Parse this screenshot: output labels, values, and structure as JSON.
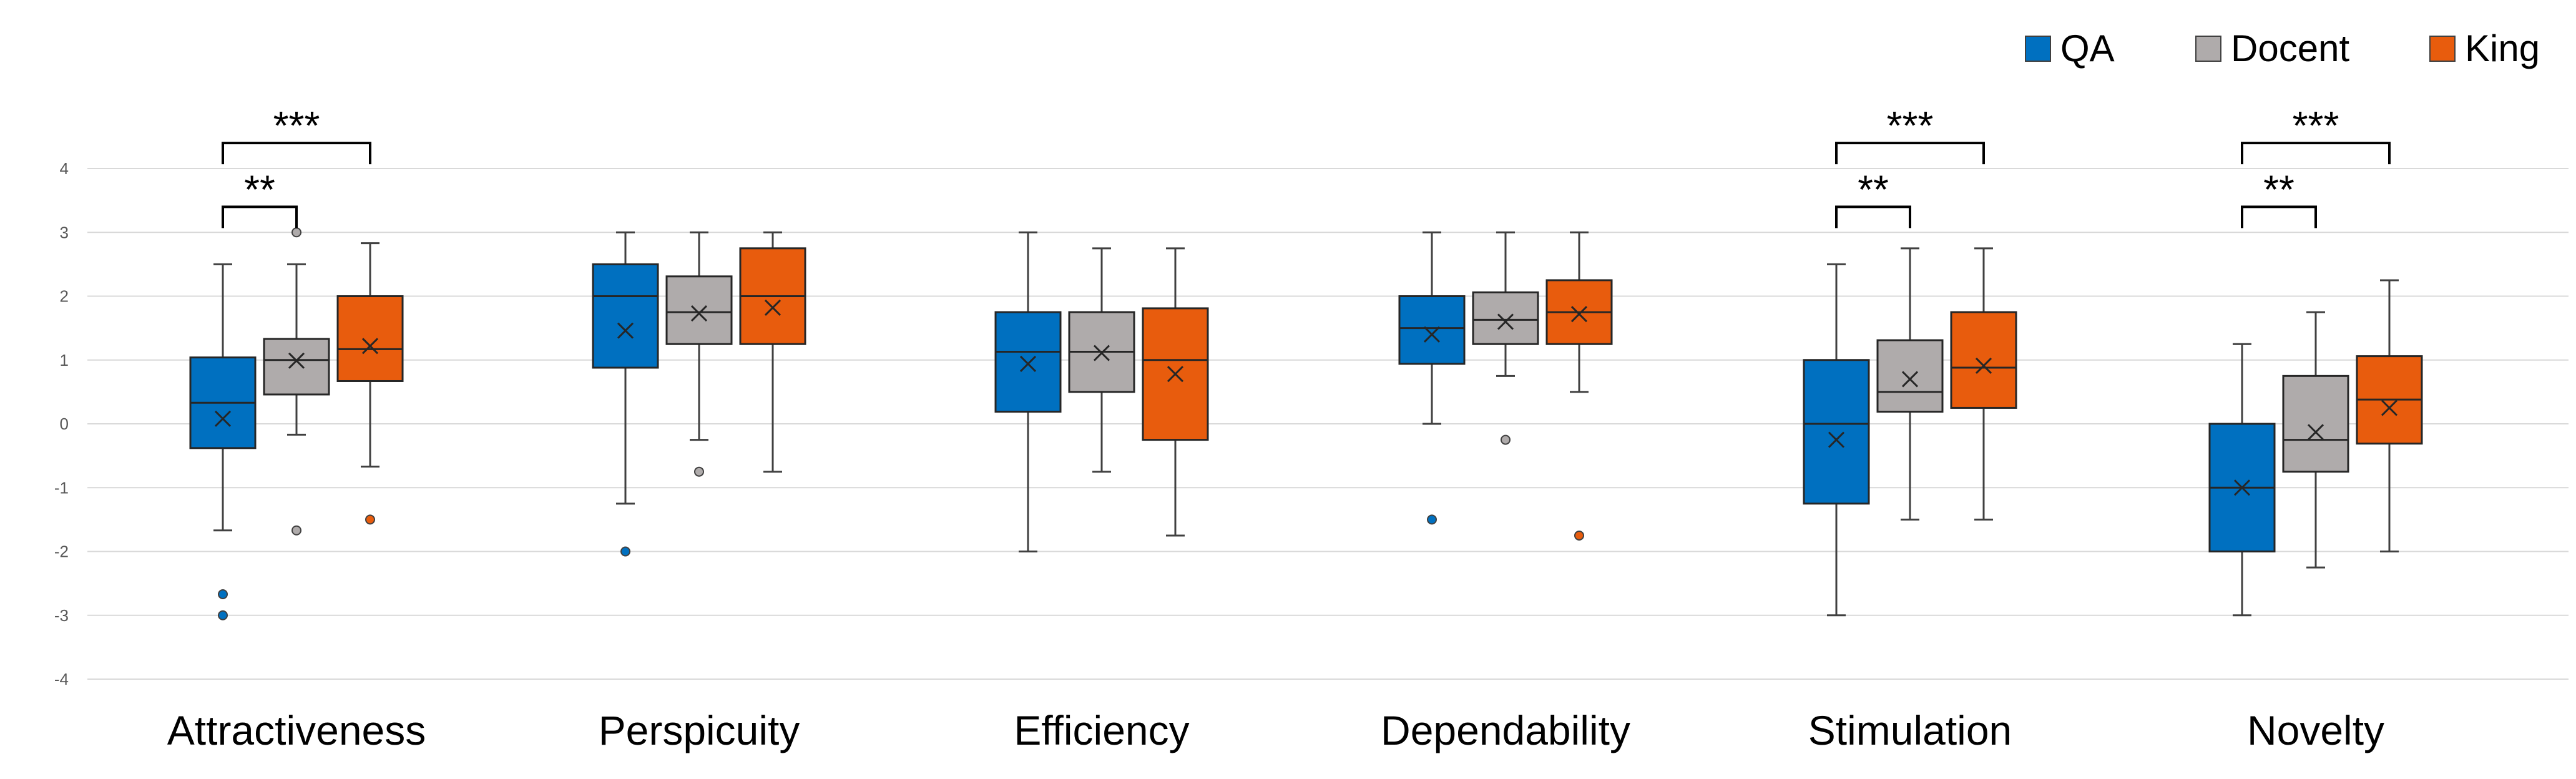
{
  "chart_data": {
    "type": "box",
    "title": "",
    "xlabel": "",
    "ylabel": "",
    "ylim": [
      -4,
      4
    ],
    "yticks": [
      -4,
      -3,
      -2,
      -1,
      0,
      1,
      2,
      3,
      4
    ],
    "grid": true,
    "legend_position": "top-right",
    "categories": [
      "Attractiveness",
      "Perspicuity",
      "Efficiency",
      "Dependability",
      "Stimulation",
      "Novelty"
    ],
    "series": [
      {
        "name": "QA",
        "color": "#0070C0",
        "stats": [
          {
            "min": -1.67,
            "q1": -0.38,
            "median": 0.33,
            "q3": 1.04,
            "max": 2.5,
            "mean": 0.08,
            "outliers": [
              -2.67,
              -3.0
            ]
          },
          {
            "min": -1.25,
            "q1": 0.88,
            "median": 2.0,
            "q3": 2.5,
            "max": 3.0,
            "mean": 1.46,
            "outliers": [
              -2.0
            ]
          },
          {
            "min": -2.0,
            "q1": 0.19,
            "median": 1.13,
            "q3": 1.75,
            "max": 3.0,
            "mean": 0.94,
            "outliers": []
          },
          {
            "min": 0.0,
            "q1": 0.94,
            "median": 1.5,
            "q3": 2.0,
            "max": 3.0,
            "mean": 1.4,
            "outliers": [
              -1.5
            ]
          },
          {
            "min": -3.0,
            "q1": -1.25,
            "median": 0.0,
            "q3": 1.0,
            "max": 2.5,
            "mean": -0.25,
            "outliers": []
          },
          {
            "min": -3.0,
            "q1": -2.0,
            "median": -1.0,
            "q3": 0.0,
            "max": 1.25,
            "mean": -1.0,
            "outliers": []
          }
        ]
      },
      {
        "name": "Docent",
        "color": "#AFABAB",
        "stats": [
          {
            "min": -0.17,
            "q1": 0.46,
            "median": 1.0,
            "q3": 1.33,
            "max": 2.5,
            "mean": 0.99,
            "outliers": [
              3.0,
              -1.67
            ]
          },
          {
            "min": -0.25,
            "q1": 1.25,
            "median": 1.75,
            "q3": 2.31,
            "max": 3.0,
            "mean": 1.73,
            "outliers": [
              -0.75
            ]
          },
          {
            "min": -0.75,
            "q1": 0.5,
            "median": 1.13,
            "q3": 1.75,
            "max": 2.75,
            "mean": 1.11,
            "outliers": []
          },
          {
            "min": 0.75,
            "q1": 1.25,
            "median": 1.63,
            "q3": 2.06,
            "max": 3.0,
            "mean": 1.6,
            "outliers": [
              -0.25
            ]
          },
          {
            "min": -1.5,
            "q1": 0.19,
            "median": 0.5,
            "q3": 1.31,
            "max": 2.75,
            "mean": 0.7,
            "outliers": []
          },
          {
            "min": -2.25,
            "q1": -0.75,
            "median": -0.25,
            "q3": 0.75,
            "max": 1.75,
            "mean": -0.13,
            "outliers": []
          }
        ]
      },
      {
        "name": "King",
        "color": "#E85C0D",
        "stats": [
          {
            "min": -0.67,
            "q1": 0.67,
            "median": 1.17,
            "q3": 2.0,
            "max": 2.83,
            "mean": 1.22,
            "outliers": [
              -1.5
            ]
          },
          {
            "min": -0.75,
            "q1": 1.25,
            "median": 2.0,
            "q3": 2.75,
            "max": 3.0,
            "mean": 1.82,
            "outliers": []
          },
          {
            "min": -1.75,
            "q1": -0.25,
            "median": 1.0,
            "q3": 1.81,
            "max": 2.75,
            "mean": 0.78,
            "outliers": []
          },
          {
            "min": 0.5,
            "q1": 1.25,
            "median": 1.75,
            "q3": 2.25,
            "max": 3.0,
            "mean": 1.72,
            "outliers": [
              -1.75
            ]
          },
          {
            "min": -1.5,
            "q1": 0.25,
            "median": 0.88,
            "q3": 1.75,
            "max": 2.75,
            "mean": 0.91,
            "outliers": []
          },
          {
            "min": -2.0,
            "q1": -0.31,
            "median": 0.38,
            "q3": 1.06,
            "max": 2.25,
            "mean": 0.25,
            "outliers": []
          }
        ]
      }
    ],
    "significance": [
      {
        "category": "Attractiveness",
        "from": "QA",
        "to": "Docent",
        "label": "**",
        "y": 3.4
      },
      {
        "category": "Attractiveness",
        "from": "QA",
        "to": "King",
        "label": "***",
        "y": 4.4
      },
      {
        "category": "Stimulation",
        "from": "QA",
        "to": "Docent",
        "label": "**",
        "y": 3.4
      },
      {
        "category": "Stimulation",
        "from": "QA",
        "to": "King",
        "label": "***",
        "y": 4.4
      },
      {
        "category": "Novelty",
        "from": "QA",
        "to": "Docent",
        "label": "**",
        "y": 3.4
      },
      {
        "category": "Novelty",
        "from": "QA",
        "to": "King",
        "label": "***",
        "y": 4.4
      }
    ]
  }
}
